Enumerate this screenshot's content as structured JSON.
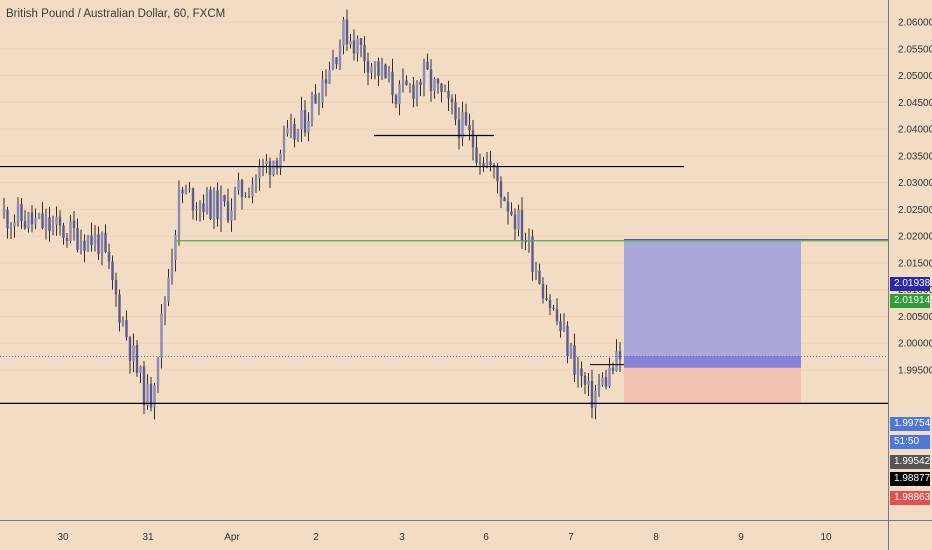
{
  "title": "British Pound / Australian Dollar, 60, FXCM",
  "axis": {
    "y_ticks": [
      "2.06000",
      "2.05500",
      "2.05000",
      "2.04500",
      "2.04000",
      "2.03500",
      "2.03000",
      "2.02500",
      "2.02000",
      "2.01500",
      "2.01000",
      "2.00500",
      "2.00000",
      "1.99500"
    ],
    "x_ticks": [
      "30",
      "31",
      "Apr",
      "2",
      "3",
      "6",
      "7",
      "8",
      "9",
      "10"
    ]
  },
  "badges": {
    "target": "2.01938",
    "green_line": "2.01914",
    "last_price": "1.99754",
    "countdown": "51:50",
    "entry": "1.99542",
    "support": "1.98877",
    "stop": "1.98863"
  },
  "colors": {
    "background": "#f3dcc4",
    "candle_body": "#5a5a8c",
    "candle_wick": "#2f2f2f",
    "profit_zone": "#a9a8d8",
    "loss_zone": "#f1c2b0",
    "green_line": "#4caf50",
    "last_price": "#2962ff",
    "stop": "#ef5350",
    "support": "#000000",
    "entry": "#4d4d4d"
  },
  "chart_data": {
    "type": "candlestick",
    "symbol": "GBP/AUD",
    "timeframe": "60",
    "source": "FXCM",
    "close_series": [
      {
        "x": "29 Mar",
        "close": 2.024
      },
      {
        "x": "30 Mar",
        "close": 2.021
      },
      {
        "x": "30 Mar late",
        "close": 2.019
      },
      {
        "x": "31 Mar",
        "close": 1.993
      },
      {
        "x": "31 Mar low",
        "close": 1.9888
      },
      {
        "x": "1 Apr",
        "close": 2.028
      },
      {
        "x": "1 Apr late",
        "close": 2.025
      },
      {
        "x": "2 Apr",
        "close": 2.04
      },
      {
        "x": "2 Apr peak",
        "close": 2.0585
      },
      {
        "x": "3 Apr",
        "close": 2.046
      },
      {
        "x": "3 Apr late",
        "close": 2.05
      },
      {
        "x": "6 Apr",
        "close": 2.033
      },
      {
        "x": "6 Apr late",
        "close": 2.02
      },
      {
        "x": "7 Apr",
        "close": 2.005
      },
      {
        "x": "7 Apr low",
        "close": 1.9895
      },
      {
        "x": "7 Apr last",
        "close": 1.99754
      }
    ],
    "horizontal_levels": [
      2.033,
      2.0388,
      2.01914,
      1.98877
    ],
    "position": {
      "target": 2.01938,
      "entry": 1.99542,
      "stop": 1.98863
    },
    "ylim": [
      1.9855,
      2.0625
    ]
  }
}
